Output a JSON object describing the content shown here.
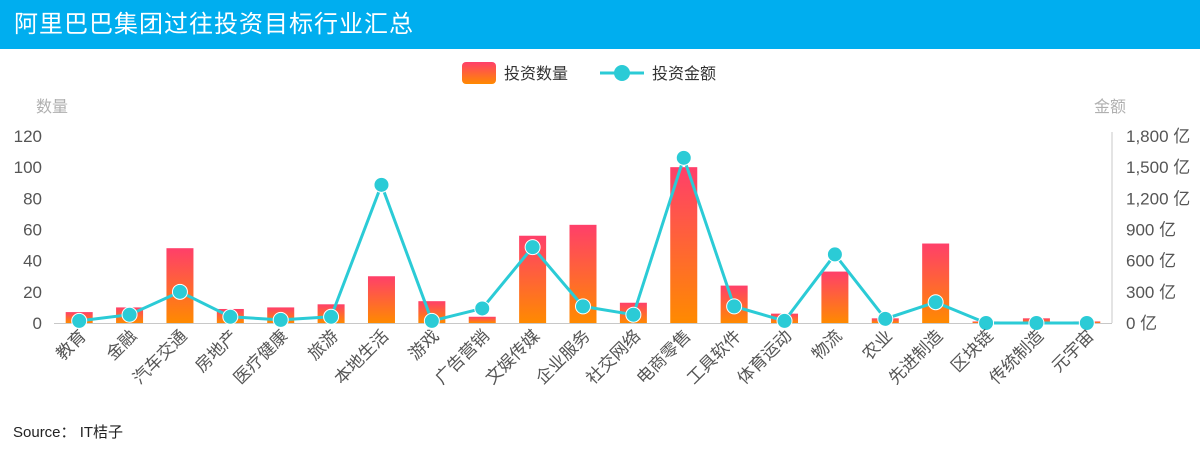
{
  "header": {
    "title": "阿里巴巴集团过往投资目标行业汇总"
  },
  "source": {
    "label": "Source：",
    "text": "IT桔子"
  },
  "colors": {
    "header_bg": "#00AEEF",
    "bar_top": "#FF3F6A",
    "bar_bottom": "#FF8A00",
    "line": "#2BCBD6",
    "axis_text": "#555555",
    "axis_name": "#B0B0B0"
  },
  "chart_data": {
    "type": "bar",
    "categories": [
      "教育",
      "金融",
      "汽车交通",
      "房地产",
      "医疗健康",
      "旅游",
      "本地生活",
      "游戏",
      "广告营销",
      "文娱传媒",
      "企业服务",
      "社交网络",
      "电商零售",
      "工具软件",
      "体育运动",
      "物流",
      "农业",
      "先进制造",
      "区块链",
      "传统制造",
      "元宇宙"
    ],
    "series": [
      {
        "name": "投资数量",
        "type": "bar",
        "axis": "left",
        "values": [
          7,
          10,
          48,
          9,
          10,
          12,
          30,
          14,
          4,
          56,
          63,
          13,
          100,
          24,
          6,
          33,
          3,
          51,
          1,
          3,
          1
        ]
      },
      {
        "name": "投资金额",
        "type": "line",
        "axis": "right",
        "values": [
          20,
          80,
          300,
          60,
          30,
          60,
          1330,
          20,
          140,
          730,
          160,
          80,
          1590,
          160,
          20,
          660,
          40,
          200,
          0,
          0,
          0
        ]
      }
    ],
    "yAxisLeft": {
      "name": "数量",
      "min": 0,
      "max": 120,
      "ticks": [
        "0",
        "20",
        "40",
        "60",
        "80",
        "100",
        "120"
      ]
    },
    "yAxisRight": {
      "name": "金额",
      "min": 0,
      "max": 1800,
      "ticks": [
        "0 亿",
        "300 亿",
        "600 亿",
        "900 亿",
        "1,200 亿",
        "1,500 亿",
        "1,800 亿"
      ]
    },
    "legend": "top-center",
    "grid": false
  }
}
